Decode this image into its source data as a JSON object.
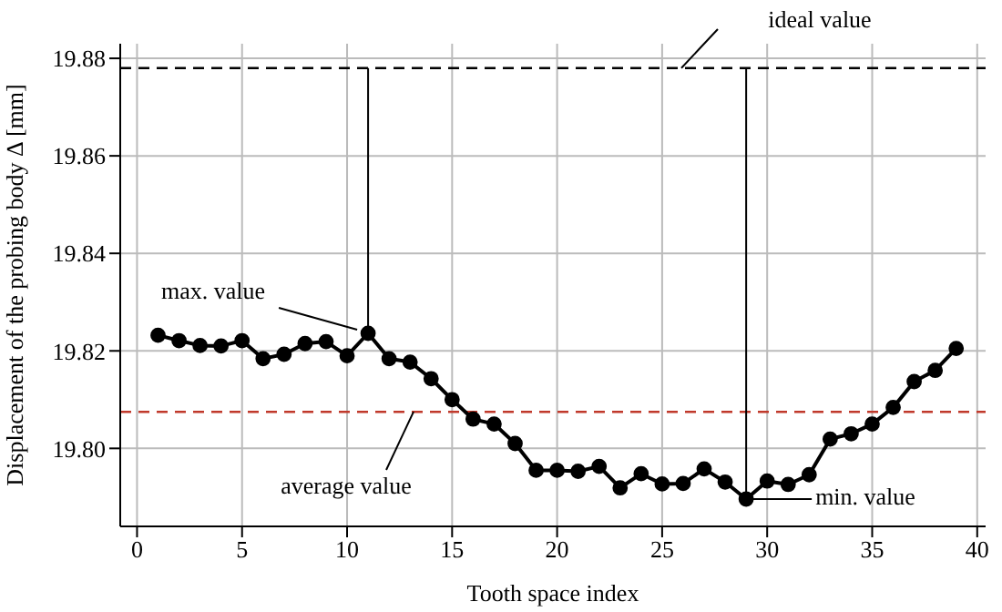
{
  "chart_data": {
    "type": "line",
    "xlabel": "Tooth space index",
    "ylabel": "Displacement of the probing body Δ [mm]",
    "xlim": [
      -0.8,
      40.4
    ],
    "xticks": [
      0,
      5,
      10,
      15,
      20,
      25,
      30,
      35,
      40
    ],
    "ylim": [
      19.784,
      19.883
    ],
    "yticks": [
      {
        "value": 19.8,
        "label": "19.80"
      },
      {
        "value": 19.82,
        "label": "19.82"
      },
      {
        "value": 19.84,
        "label": "19.84"
      },
      {
        "value": 19.86,
        "label": "19.86"
      },
      {
        "value": 19.88,
        "label": "19.88"
      }
    ],
    "grid": true,
    "series": [
      {
        "color": "#000000",
        "marker": "circle",
        "x": [
          1,
          2,
          3,
          4,
          5,
          6,
          7,
          8,
          9,
          10,
          11,
          12,
          13,
          14,
          15,
          16,
          17,
          18,
          19,
          20,
          21,
          22,
          23,
          24,
          25,
          26,
          27,
          28,
          29,
          30,
          31,
          32,
          33,
          34,
          35,
          36,
          37,
          38,
          39
        ],
        "values": [
          19.8232,
          19.8221,
          19.8211,
          19.821,
          19.8221,
          19.8184,
          19.8193,
          19.8215,
          19.8219,
          19.819,
          19.8236,
          19.8184,
          19.8177,
          19.8143,
          19.81,
          19.806,
          19.805,
          19.801,
          19.7955,
          19.7955,
          19.7953,
          19.7963,
          19.7919,
          19.7948,
          19.7927,
          19.7928,
          19.7958,
          19.7931,
          19.7896,
          19.7933,
          19.7926,
          19.7946,
          19.8019,
          19.803,
          19.805,
          19.8084,
          19.8137,
          19.816,
          19.8205
        ]
      },
      {
        "color": "#000000",
        "marker": "none",
        "x": [
          11,
          11
        ],
        "values": [
          19.8236,
          19.878
        ]
      },
      {
        "color": "#000000",
        "marker": "none",
        "x": [
          29,
          29
        ],
        "values": [
          19.7896,
          19.878
        ]
      }
    ],
    "ref_lines": [
      {
        "axis": "y",
        "value": 19.878,
        "label": "ideal value",
        "color": "#000000",
        "line_style": "dashed"
      },
      {
        "axis": "y",
        "value": 19.8075,
        "label": "average value",
        "color": "#c0392b",
        "line_style": "dashed"
      }
    ],
    "annotations": [
      {
        "text": "max. value",
        "x": 11,
        "y": 19.8236
      },
      {
        "text": "min. value",
        "x": 29,
        "y": 19.7896
      }
    ]
  }
}
